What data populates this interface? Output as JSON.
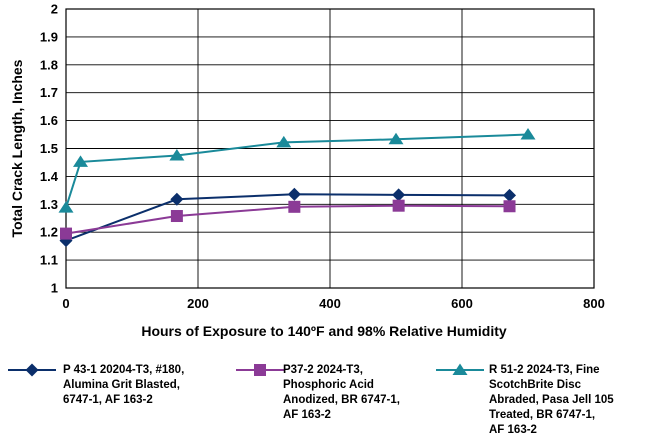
{
  "chart_data": {
    "type": "line",
    "xlabel": "Hours of Exposure to 140ºF and 98% Relative Humidity",
    "ylabel": "Total Crack Length, Inches",
    "xlim": [
      0,
      800
    ],
    "ylim": [
      1,
      2
    ],
    "xticks": [
      "0",
      "200",
      "400",
      "600",
      "800"
    ],
    "yticks": [
      "1",
      "1.1",
      "1.2",
      "1.3",
      "1.4",
      "1.5",
      "1.6",
      "1.7",
      "1.8",
      "1.9",
      "2"
    ],
    "grid": "vertical and horizontal major lines",
    "legend_position": "bottom",
    "series": [
      {
        "name": "P 43-1 20204-T3, #180, Alumina Grit Blasted, 6747-1, AF 163-2",
        "label_lines": [
          "P 43-1 20204-T3, #180,",
          "Alumina Grit Blasted,",
          "6747-1, AF 163-2"
        ],
        "color": "#0b2f6b",
        "marker": "diamond",
        "x": [
          0,
          168,
          346,
          504,
          672
        ],
        "y": [
          1.17,
          1.318,
          1.336,
          1.334,
          1.332
        ]
      },
      {
        "name": "P37-2 2024-T3, Phosphoric Acid Anodized, BR 6747-1, AF 163-2",
        "label_lines": [
          "P37-2 2024-T3,",
          "Phosphoric Acid",
          "Anodized, BR 6747-1,",
          "AF 163-2"
        ],
        "color": "#8b3a96",
        "marker": "square",
        "x": [
          0,
          168,
          346,
          504,
          672
        ],
        "y": [
          1.195,
          1.258,
          1.291,
          1.295,
          1.293
        ]
      },
      {
        "name": "R 51-2 2024-T3, Fine ScotchBrite Disc Abraded, Pasa Jell 105 Treated, BR 6747-1, AF 163-2",
        "label_lines": [
          "R 51-2 2024-T3, Fine",
          "ScotchBrite Disc",
          "Abraded, Pasa Jell 105",
          "Treated, BR 6747-1,",
          "AF 163-2"
        ],
        "color": "#1a8a9a",
        "marker": "triangle",
        "x": [
          0,
          22,
          168,
          330,
          500,
          700
        ],
        "y": [
          1.288,
          1.452,
          1.475,
          1.522,
          1.533,
          1.55
        ]
      }
    ]
  }
}
